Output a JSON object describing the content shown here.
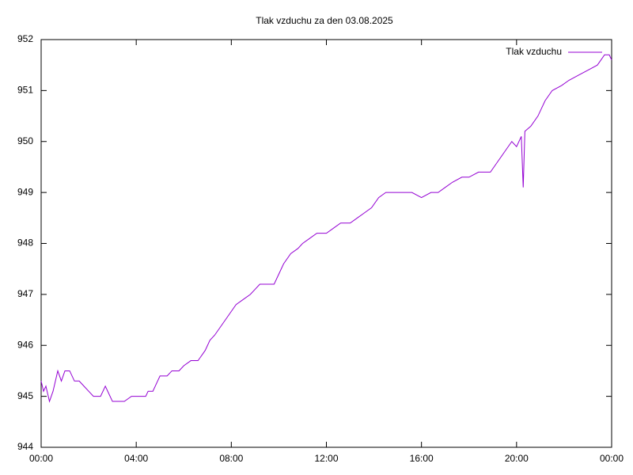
{
  "chart_data": {
    "type": "line",
    "title": "Tlak vzduchu za den 03.08.2025",
    "x": [
      0,
      0.1,
      0.2,
      0.35,
      0.5,
      0.7,
      0.85,
      1.0,
      1.2,
      1.4,
      1.6,
      1.8,
      2.0,
      2.2,
      2.5,
      2.7,
      2.9,
      3.0,
      3.5,
      3.8,
      4.0,
      4.4,
      4.5,
      4.7,
      4.9,
      5.0,
      5.3,
      5.5,
      5.8,
      6.0,
      6.3,
      6.6,
      6.9,
      7.1,
      7.3,
      7.6,
      7.9,
      8.2,
      8.5,
      8.8,
      9.0,
      9.2,
      9.8,
      10.0,
      10.2,
      10.5,
      10.8,
      11.0,
      11.3,
      11.6,
      12.0,
      12.3,
      12.6,
      13.0,
      13.3,
      13.6,
      13.9,
      14.2,
      14.5,
      15.0,
      15.6,
      16.0,
      16.4,
      16.7,
      17.0,
      17.3,
      17.7,
      18.0,
      18.4,
      18.9,
      19.2,
      19.5,
      19.8,
      20.0,
      20.2,
      20.28,
      20.35,
      20.6,
      20.9,
      21.2,
      21.5,
      21.9,
      22.2,
      22.6,
      23.0,
      23.4,
      23.7,
      23.9,
      24.0
    ],
    "series": [
      {
        "name": "Tlak vzduchu",
        "color": "#9400d3",
        "values": [
          945.3,
          945.1,
          945.2,
          944.9,
          945.1,
          945.5,
          945.3,
          945.5,
          945.5,
          945.3,
          945.3,
          945.2,
          945.1,
          945.0,
          945.0,
          945.2,
          945.0,
          944.9,
          944.9,
          945.0,
          945.0,
          945.0,
          945.1,
          945.1,
          945.3,
          945.4,
          945.4,
          945.5,
          945.5,
          945.6,
          945.7,
          945.7,
          945.9,
          946.1,
          946.2,
          946.4,
          946.6,
          946.8,
          946.9,
          947.0,
          947.1,
          947.2,
          947.2,
          947.4,
          947.6,
          947.8,
          947.9,
          948.0,
          948.1,
          948.2,
          948.2,
          948.3,
          948.4,
          948.4,
          948.5,
          948.6,
          948.7,
          948.9,
          949.0,
          949.0,
          949.0,
          948.9,
          949.0,
          949.0,
          949.1,
          949.2,
          949.3,
          949.3,
          949.4,
          949.4,
          949.6,
          949.8,
          950.0,
          949.9,
          950.1,
          949.1,
          950.2,
          950.3,
          950.5,
          950.8,
          951.0,
          951.1,
          951.2,
          951.3,
          951.4,
          951.5,
          951.7,
          951.7,
          951.6
        ]
      }
    ],
    "xlim": [
      0,
      24
    ],
    "xticks": [
      {
        "value": 0,
        "label": "00:00"
      },
      {
        "value": 4,
        "label": "04:00"
      },
      {
        "value": 8,
        "label": "08:00"
      },
      {
        "value": 12,
        "label": "12:00"
      },
      {
        "value": 16,
        "label": "16:00"
      },
      {
        "value": 20,
        "label": "20:00"
      },
      {
        "value": 24,
        "label": "00:00"
      }
    ],
    "ylim": [
      944,
      952
    ],
    "yticks": [
      944,
      945,
      946,
      947,
      948,
      949,
      950,
      951,
      952
    ],
    "grid": false,
    "legend": "top-right"
  }
}
